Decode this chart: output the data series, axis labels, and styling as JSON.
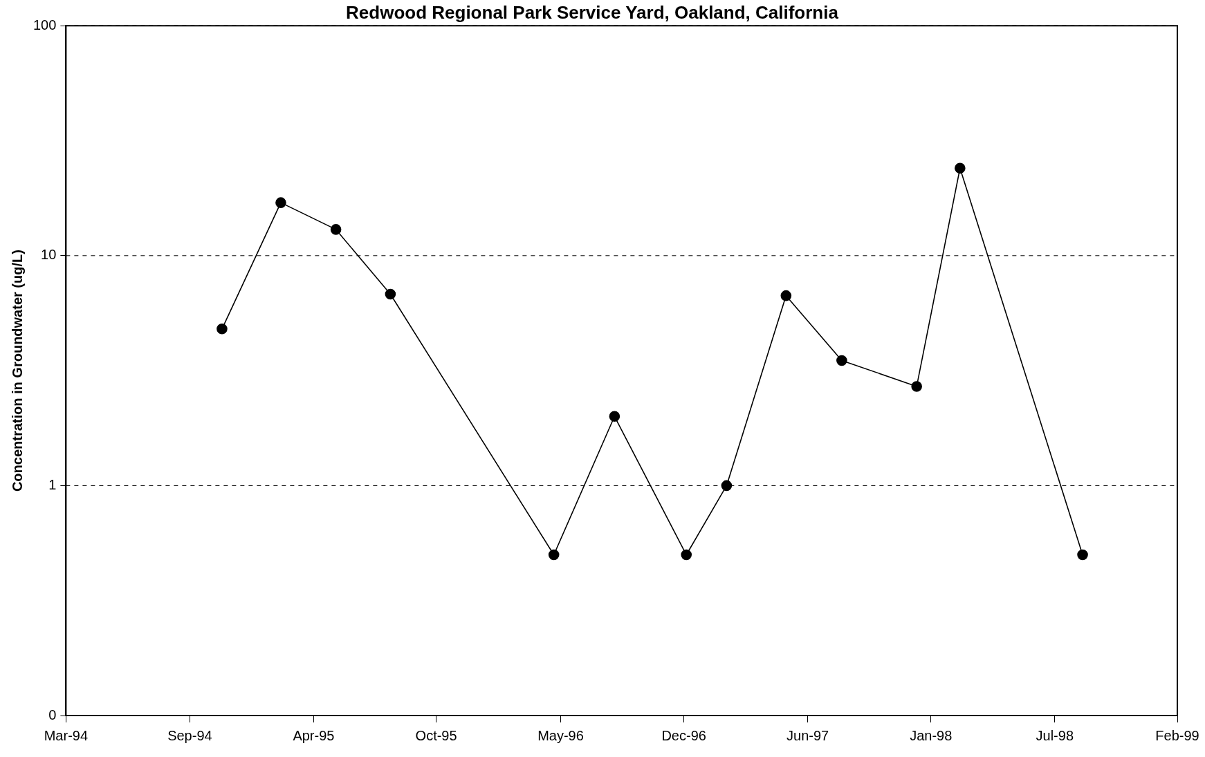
{
  "chart_data": {
    "type": "line",
    "title": "Redwood Regional Park Service Yard, Oakland, California",
    "ylabel": "Concentration in Groundwater (ug/L)",
    "x": [
      "1994-11-17",
      "1995-02-20",
      "1995-05-20",
      "1995-08-16",
      "1996-05-06",
      "1996-08-12",
      "1996-12-06",
      "1997-02-09",
      "1997-05-16",
      "1997-08-14",
      "1997-12-13",
      "1998-02-21",
      "1998-09-07"
    ],
    "series": [
      {
        "color": "#000000",
        "values": [
          4.8,
          17,
          13,
          6.8,
          0.5,
          2.0,
          0.5,
          1.0,
          6.7,
          3.5,
          2.7,
          24,
          0.5
        ]
      }
    ],
    "xlim": [
      "1994-03-10",
      "1999-02-07"
    ],
    "xticks": [
      {
        "value": "1994-03-10",
        "label": "Mar-94"
      },
      {
        "value": "1994-09-26",
        "label": "Sep-94"
      },
      {
        "value": "1995-04-14",
        "label": "Apr-95"
      },
      {
        "value": "1995-10-29",
        "label": "Oct-95"
      },
      {
        "value": "1996-05-17",
        "label": "May-96"
      },
      {
        "value": "1996-12-02",
        "label": "Dec-96"
      },
      {
        "value": "1997-06-20",
        "label": "Jun-97"
      },
      {
        "value": "1998-01-05",
        "label": "Jan-98"
      },
      {
        "value": "1998-07-24",
        "label": "Jul-98"
      },
      {
        "value": "1999-02-07",
        "label": "Feb-99"
      }
    ],
    "ylim": [
      0.1,
      100
    ],
    "yticks": [
      {
        "value": 0.1,
        "label": "0"
      },
      1,
      10,
      100
    ],
    "log": "y",
    "grid": "y",
    "legend": false,
    "marker": "circle",
    "line_style": "solid"
  }
}
